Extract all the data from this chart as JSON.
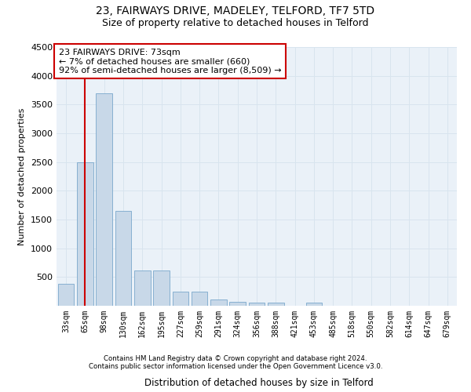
{
  "title": "23, FAIRWAYS DRIVE, MADELEY, TELFORD, TF7 5TD",
  "subtitle": "Size of property relative to detached houses in Telford",
  "xlabel": "Distribution of detached houses by size in Telford",
  "ylabel": "Number of detached properties",
  "bar_labels": [
    "33sqm",
    "65sqm",
    "98sqm",
    "130sqm",
    "162sqm",
    "195sqm",
    "227sqm",
    "259sqm",
    "291sqm",
    "324sqm",
    "356sqm",
    "388sqm",
    "421sqm",
    "453sqm",
    "485sqm",
    "518sqm",
    "550sqm",
    "582sqm",
    "614sqm",
    "647sqm",
    "679sqm"
  ],
  "bar_values": [
    380,
    2500,
    3700,
    1650,
    620,
    610,
    245,
    240,
    115,
    70,
    55,
    50,
    0,
    55,
    0,
    0,
    0,
    0,
    0,
    0,
    0
  ],
  "bar_color": "#c8d8e8",
  "bar_edge_color": "#7aa8cc",
  "vline_x": 1,
  "vline_color": "#cc0000",
  "annotation_text": "23 FAIRWAYS DRIVE: 73sqm\n← 7% of detached houses are smaller (660)\n92% of semi-detached houses are larger (8,509) →",
  "annotation_box_color": "#ffffff",
  "annotation_box_edge": "#cc0000",
  "ylim": [
    0,
    4500
  ],
  "yticks": [
    0,
    500,
    1000,
    1500,
    2000,
    2500,
    3000,
    3500,
    4000,
    4500
  ],
  "grid_color": "#d8e4ee",
  "background_color": "#eaf1f8",
  "footer_line1": "Contains HM Land Registry data © Crown copyright and database right 2024.",
  "footer_line2": "Contains public sector information licensed under the Open Government Licence v3.0.",
  "title_fontsize": 10,
  "subtitle_fontsize": 9,
  "xlabel_fontsize": 8.5,
  "ylabel_fontsize": 8
}
